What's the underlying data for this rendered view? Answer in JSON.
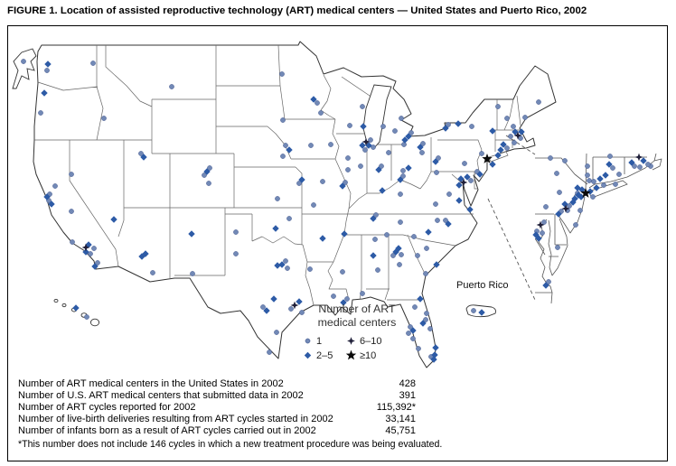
{
  "figure": {
    "title": "FIGURE 1. Location of assisted reproductive technology (ART) medical centers — United States and Puerto Rico, 2002"
  },
  "map": {
    "puerto_rico_label": "Puerto Rico"
  },
  "legend": {
    "title_lines": [
      "Number of ART",
      "medical centers"
    ],
    "items": [
      {
        "symbol": "circle",
        "label": "1"
      },
      {
        "symbol": "fourpoint",
        "label": "6–10"
      },
      {
        "symbol": "diamond",
        "label": "2–5"
      },
      {
        "symbol": "star",
        "label": "≥10"
      }
    ]
  },
  "stats": {
    "rows": [
      {
        "label": "Number of ART medical centers in the United States in 2002",
        "value": "428"
      },
      {
        "label": "Number of U.S. ART medical centers that submitted data in 2002",
        "value": "391"
      },
      {
        "label": "Number of ART cycles reported for 2002",
        "value": "115,392*"
      },
      {
        "label": "Number of live-birth deliveries resulting from ART cycles started in 2002",
        "value": "33,141"
      },
      {
        "label": "Number of infants born as a result of ART cycles carried out in 2002",
        "value": "45,751"
      }
    ],
    "footnote": "*This number does not include 146 cycles in which a new treatment procedure was being evaluated."
  },
  "colors": {
    "circle": "#7289b6",
    "circle_stroke": "#44598f",
    "diamond": "#2d5ba6",
    "six_to_ten": "#20203a",
    "star": "#0a0a0a"
  },
  "markers": {
    "legend_key": {
      "c": "1 center",
      "d": "2–5 centers",
      "q": "6–10 centers",
      "s": "≥10 centers"
    },
    "points": [
      [
        "c",
        26,
        68
      ],
      [
        "d",
        84,
        341
      ],
      [
        "c",
        96,
        351
      ],
      [
        "c",
        524,
        344
      ],
      [
        "d",
        533,
        346
      ],
      [
        "d",
        53,
        71
      ],
      [
        "c",
        52,
        78
      ],
      [
        "c",
        103,
        70
      ],
      [
        "d",
        49,
        103
      ],
      [
        "c",
        45,
        125
      ],
      [
        "c",
        115,
        131
      ],
      [
        "d",
        52,
        218
      ],
      [
        "c",
        55,
        215
      ],
      [
        "d",
        57,
        226
      ],
      [
        "c",
        61,
        206
      ],
      [
        "c",
        54,
        222
      ],
      [
        "c",
        79,
        234
      ],
      [
        "q",
        95,
        274
      ],
      [
        "d",
        98,
        271
      ],
      [
        "d",
        95,
        279
      ],
      [
        "c",
        100,
        281
      ],
      [
        "c",
        104,
        275
      ],
      [
        "c",
        80,
        268
      ],
      [
        "d",
        105,
        295
      ],
      [
        "c",
        108,
        291
      ],
      [
        "d",
        126,
        243
      ],
      [
        "c",
        79,
        193
      ],
      [
        "d",
        157,
        284
      ],
      [
        "d",
        161,
        281
      ],
      [
        "c",
        169,
        302
      ],
      [
        "d",
        212,
        259
      ],
      [
        "d",
        159,
        174
      ],
      [
        "c",
        156,
        170
      ],
      [
        "d",
        229,
        190
      ],
      [
        "c",
        232,
        186
      ],
      [
        "c",
        226,
        194
      ],
      [
        "c",
        231,
        203
      ],
      [
        "c",
        190,
        96
      ],
      [
        "c",
        312,
        82
      ],
      [
        "c",
        313,
        133
      ],
      [
        "d",
        320,
        166
      ],
      [
        "c",
        316,
        161
      ],
      [
        "c",
        313,
        173
      ],
      [
        "c",
        307,
        220
      ],
      [
        "d",
        334,
        199
      ],
      [
        "c",
        331,
        203
      ],
      [
        "d",
        305,
        253
      ],
      [
        "c",
        320,
        242
      ],
      [
        "c",
        344,
        161
      ],
      [
        "c",
        366,
        160
      ],
      [
        "d",
        312,
        293
      ],
      [
        "d",
        307,
        294
      ],
      [
        "c",
        316,
        289
      ],
      [
        "c",
        318,
        297
      ],
      [
        "d",
        303,
        331
      ],
      [
        "d",
        295,
        344
      ],
      [
        "c",
        291,
        340
      ],
      [
        "q",
        326,
        338
      ],
      [
        "d",
        331,
        334
      ],
      [
        "c",
        322,
        342
      ],
      [
        "c",
        334,
        346
      ],
      [
        "c",
        213,
        303
      ],
      [
        "c",
        261,
        281
      ],
      [
        "c",
        261,
        257
      ],
      [
        "c",
        298,
        390
      ],
      [
        "c",
        306,
        368
      ],
      [
        "d",
        347,
        110
      ],
      [
        "c",
        351,
        114
      ],
      [
        "c",
        355,
        125
      ],
      [
        "c",
        387,
        139
      ],
      [
        "d",
        402,
        140
      ],
      [
        "c",
        401,
        118
      ],
      [
        "q",
        405,
        157
      ],
      [
        "d",
        408,
        161
      ],
      [
        "d",
        401,
        161
      ],
      [
        "c",
        410,
        155
      ],
      [
        "c",
        404,
        166
      ],
      [
        "c",
        413,
        163
      ],
      [
        "c",
        385,
        175
      ],
      [
        "c",
        385,
        188
      ],
      [
        "c",
        399,
        184
      ],
      [
        "d",
        419,
        188
      ],
      [
        "c",
        422,
        184
      ],
      [
        "c",
        430,
        169
      ],
      [
        "d",
        452,
        151
      ],
      [
        "d",
        448,
        155
      ],
      [
        "c",
        455,
        147
      ],
      [
        "c",
        437,
        145
      ],
      [
        "c",
        424,
        140
      ],
      [
        "c",
        444,
        131
      ],
      [
        "c",
        447,
        160
      ],
      [
        "d",
        465,
        163
      ],
      [
        "c",
        468,
        159
      ],
      [
        "c",
        467,
        169
      ],
      [
        "d",
        452,
        186
      ],
      [
        "d",
        443,
        199
      ],
      [
        "c",
        446,
        195
      ],
      [
        "c",
        446,
        189
      ],
      [
        "d",
        379,
        206
      ],
      [
        "c",
        382,
        202
      ],
      [
        "c",
        357,
        201
      ],
      [
        "c",
        347,
        227
      ],
      [
        "d",
        423,
        211
      ],
      [
        "c",
        443,
        215
      ],
      [
        "d",
        381,
        259
      ],
      [
        "d",
        413,
        242
      ],
      [
        "c",
        416,
        238
      ],
      [
        "c",
        443,
        246
      ],
      [
        "c",
        428,
        260
      ],
      [
        "c",
        415,
        265
      ],
      [
        "d",
        357,
        264
      ],
      [
        "c",
        379,
        301
      ],
      [
        "d",
        413,
        283
      ],
      [
        "c",
        418,
        299
      ],
      [
        "c",
        401,
        325
      ],
      [
        "c",
        343,
        298
      ],
      [
        "c",
        369,
        328
      ],
      [
        "d",
        380,
        335
      ],
      [
        "c",
        384,
        331
      ],
      [
        "d",
        438,
        279
      ],
      [
        "d",
        441,
        275
      ],
      [
        "c",
        435,
        283
      ],
      [
        "c",
        444,
        282
      ],
      [
        "c",
        462,
        283
      ],
      [
        "c",
        471,
        303
      ],
      [
        "c",
        442,
        293
      ],
      [
        "c",
        472,
        275
      ],
      [
        "d",
        483,
        293
      ],
      [
        "c",
        458,
        262
      ],
      [
        "d",
        474,
        257
      ],
      [
        "d",
        496,
        248
      ],
      [
        "c",
        493,
        244
      ],
      [
        "c",
        484,
        244
      ],
      [
        "d",
        520,
        232
      ],
      [
        "d",
        508,
        222
      ],
      [
        "c",
        497,
        215
      ],
      [
        "c",
        482,
        226
      ],
      [
        "q",
        513,
        202
      ],
      [
        "d",
        510,
        198
      ],
      [
        "d",
        508,
        205
      ],
      [
        "d",
        517,
        196
      ],
      [
        "c",
        521,
        200
      ],
      [
        "c",
        483,
        191
      ],
      [
        "d",
        531,
        193
      ],
      [
        "c",
        528,
        190
      ],
      [
        "d",
        482,
        179
      ],
      [
        "c",
        485,
        175
      ],
      [
        "c",
        514,
        181
      ],
      [
        "s",
        539,
        176
      ],
      [
        "d",
        545,
        182
      ],
      [
        "c",
        533,
        170
      ],
      [
        "d",
        551,
        172
      ],
      [
        "d",
        554,
        166
      ],
      [
        "d",
        557,
        160
      ],
      [
        "c",
        561,
        164
      ],
      [
        "c",
        569,
        158
      ],
      [
        "q",
        573,
        150
      ],
      [
        "d",
        577,
        146
      ],
      [
        "d",
        570,
        146
      ],
      [
        "c",
        576,
        153
      ],
      [
        "c",
        565,
        151
      ],
      [
        "c",
        568,
        140
      ],
      [
        "c",
        561,
        131
      ],
      [
        "c",
        551,
        118
      ],
      [
        "c",
        581,
        130
      ],
      [
        "c",
        596,
        113
      ],
      [
        "d",
        545,
        145
      ],
      [
        "c",
        522,
        140
      ],
      [
        "d",
        507,
        137
      ],
      [
        "d",
        493,
        142
      ],
      [
        "c",
        496,
        138
      ],
      [
        "d",
        465,
        331
      ],
      [
        "c",
        459,
        340
      ],
      [
        "d",
        468,
        358
      ],
      [
        "c",
        471,
        354
      ],
      [
        "c",
        472,
        347
      ],
      [
        "d",
        457,
        366
      ],
      [
        "c",
        454,
        362
      ],
      [
        "c",
        452,
        369
      ],
      [
        "c",
        457,
        375
      ],
      [
        "c",
        463,
        386
      ],
      [
        "d",
        482,
        385
      ],
      [
        "d",
        481,
        393
      ],
      [
        "d",
        480,
        398
      ],
      [
        "c",
        477,
        395
      ],
      [
        "c",
        476,
        364
      ],
      [
        "s",
        648,
        214
      ],
      [
        "d",
        644,
        210
      ],
      [
        "d",
        653,
        212
      ],
      [
        "c",
        656,
        218
      ],
      [
        "d",
        643,
        218
      ],
      [
        "c",
        639,
        214
      ],
      [
        "d",
        660,
        208
      ],
      [
        "c",
        668,
        205
      ],
      [
        "c",
        681,
        204
      ],
      [
        "c",
        652,
        200
      ],
      [
        "c",
        650,
        194
      ],
      [
        "d",
        639,
        208
      ],
      [
        "d",
        636,
        220
      ],
      [
        "d",
        640,
        216
      ],
      [
        "c",
        628,
        233
      ],
      [
        "c",
        642,
        233
      ],
      [
        "c",
        637,
        249
      ],
      [
        "q",
        626,
        231
      ],
      [
        "d",
        625,
        226
      ],
      [
        "c",
        630,
        228
      ],
      [
        "c",
        621,
        234
      ],
      [
        "d",
        618,
        237
      ],
      [
        "q",
        598,
        249
      ],
      [
        "c",
        602,
        246
      ],
      [
        "d",
        593,
        260
      ],
      [
        "d",
        596,
        264
      ],
      [
        "c",
        594,
        256
      ],
      [
        "c",
        600,
        258
      ],
      [
        "d",
        604,
        316
      ],
      [
        "c",
        607,
        312
      ],
      [
        "c",
        617,
        274
      ],
      [
        "d",
        670,
        194
      ],
      [
        "d",
        664,
        198
      ],
      [
        "c",
        657,
        201
      ],
      [
        "d",
        674,
        182
      ],
      [
        "c",
        678,
        186
      ],
      [
        "c",
        685,
        193
      ],
      [
        "d",
        699,
        180
      ],
      [
        "c",
        702,
        184
      ],
      [
        "c",
        708,
        185
      ],
      [
        "c",
        720,
        184
      ],
      [
        "c",
        675,
        173
      ],
      [
        "q",
        707,
        174
      ],
      [
        "d",
        712,
        178
      ],
      [
        "c",
        717,
        182
      ],
      [
        "c",
        609,
        175
      ],
      [
        "c",
        625,
        178
      ],
      [
        "c",
        650,
        184
      ],
      [
        "c",
        604,
        229
      ],
      [
        "c",
        619,
        213
      ],
      [
        "c",
        616,
        192
      ],
      [
        "d",
        634,
        224
      ]
    ]
  }
}
